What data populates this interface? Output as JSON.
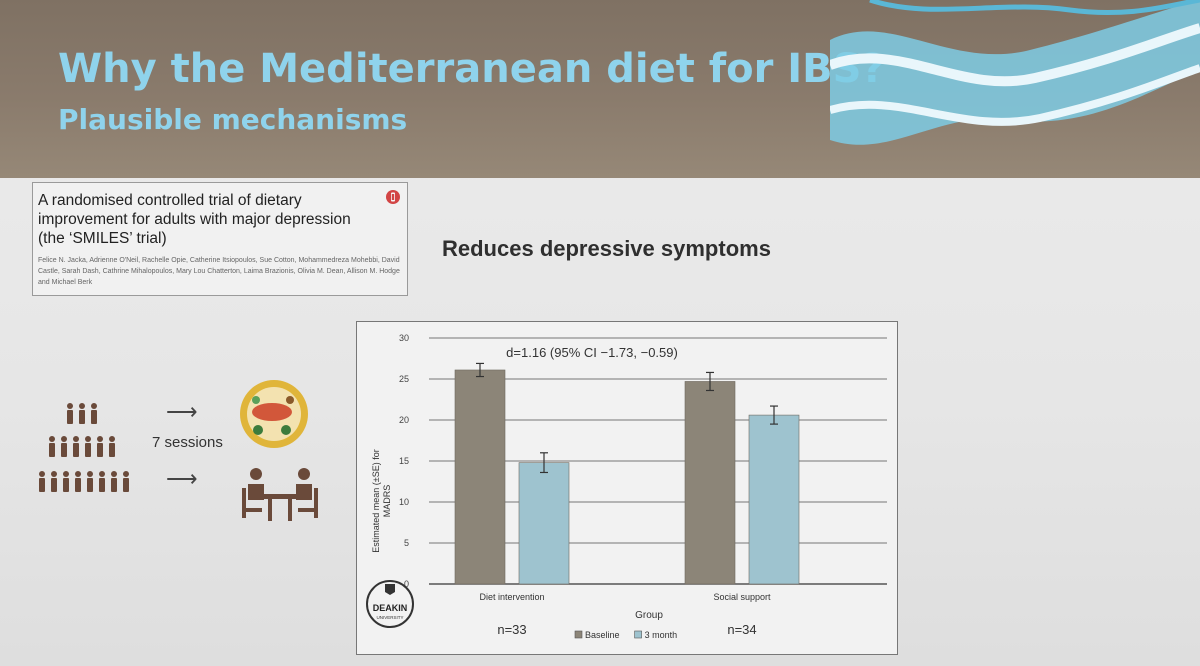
{
  "slide": {
    "title": "Why the Mediterranean diet for IBS?",
    "subtitle": "Plausible mechanisms"
  },
  "citation": {
    "title": "A randomised controlled trial of dietary improvement for adults with major depression (the ‘SMILES’ trial)",
    "authors": "Felice N. Jacka, Adrienne O'Neil, Rachelle Opie, Catherine Itsiopoulos, Sue Cotton, Mohammedreza Mohebbi, David Castle, Sarah Dash, Cathrine Mihalopoulos, Mary Lou Chatterton, Laima Brazionis, Olivia M. Dean, Allison M. Hodge and Michael Berk"
  },
  "diagram": {
    "sessions_label": "7 sessions",
    "icons": [
      "people-group-icon",
      "arrow-right-icon",
      "food-plate-icon",
      "meeting-table-icon"
    ]
  },
  "chart_heading": "Reduces depressive symptoms",
  "logo": {
    "name": "DEAKIN",
    "sub": "UNIVERSITY"
  },
  "chart_data": {
    "type": "bar",
    "categories": [
      "Diet intervention",
      "Social support"
    ],
    "series": [
      {
        "name": "Baseline",
        "values": [
          26.1,
          24.7
        ],
        "errors": [
          0.8,
          1.1
        ],
        "color": "#8c8578"
      },
      {
        "name": "3 month",
        "values": [
          14.8,
          20.6
        ],
        "errors": [
          1.2,
          1.1
        ],
        "color": "#9ec3cf"
      }
    ],
    "ylabel": "Estimated mean (±SE) for MADRS",
    "xlabel": "Group",
    "ylim": [
      0,
      30
    ],
    "yticks": [
      0,
      5,
      10,
      15,
      20,
      25,
      30
    ],
    "annotation": "d=1.16 (95% CI −1.73, −0.59)",
    "n_labels": [
      "n=33",
      "n=34"
    ],
    "legend": {
      "placement": "bottom-center"
    },
    "grid": true,
    "colors": {
      "axis": "#555555",
      "grid": "#777777"
    }
  }
}
